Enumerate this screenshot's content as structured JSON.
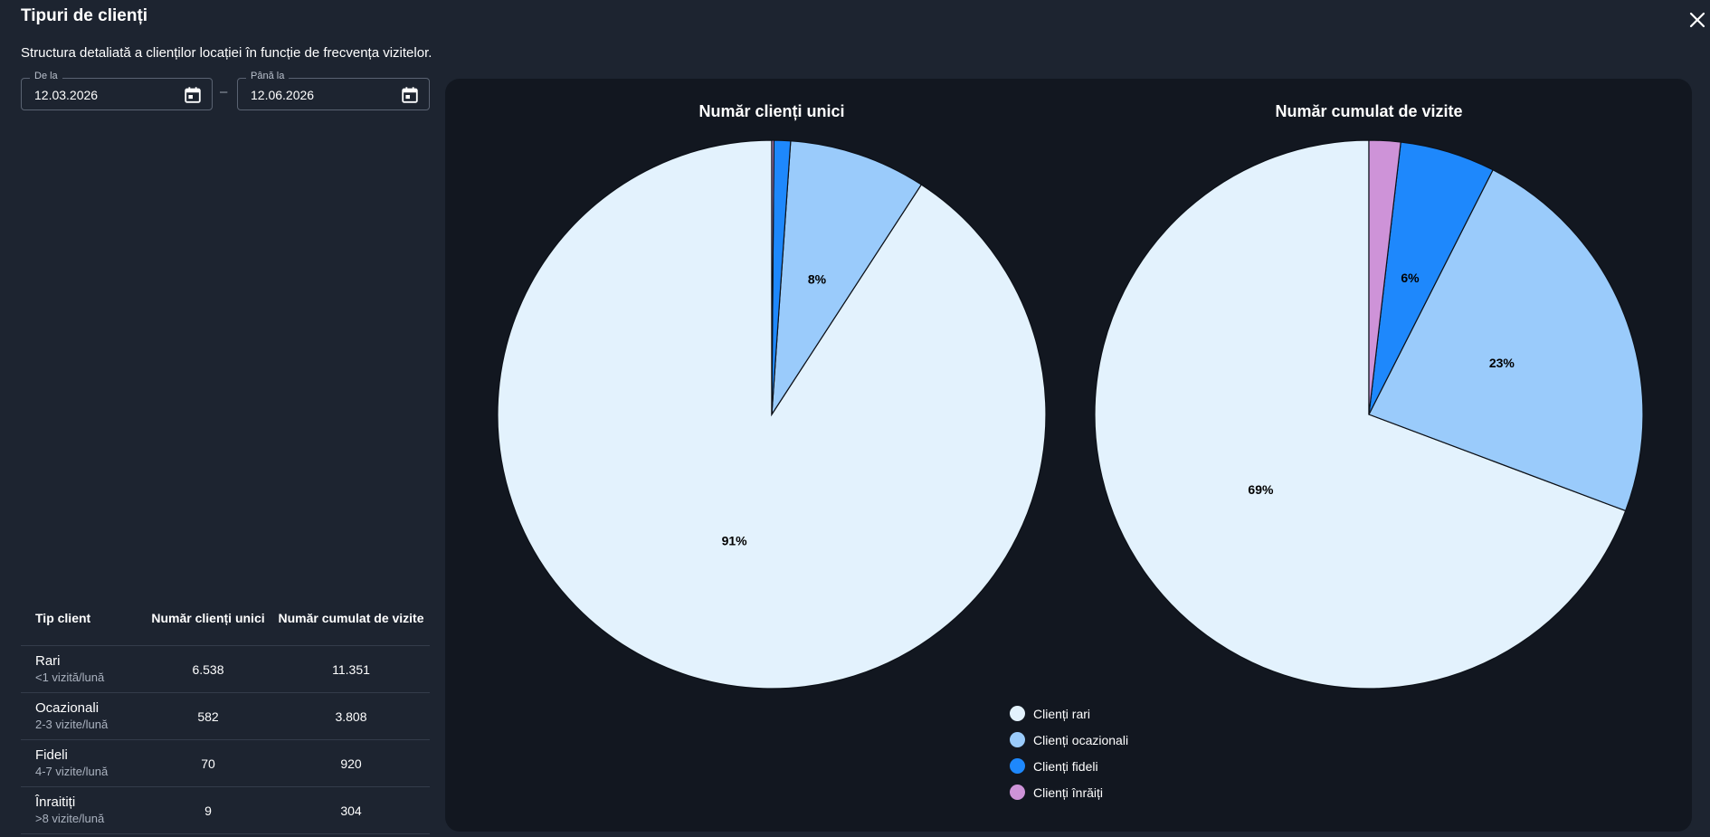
{
  "dialog": {
    "title": "Tipuri de clienți",
    "subtitle": "Structura detaliată a clienților locației în funcție de frecvența vizitelor."
  },
  "date_range": {
    "from_label": "De la",
    "from_value": "12.03.2026",
    "separator": "–",
    "to_label": "Până la",
    "to_value": "12.06.2026"
  },
  "table": {
    "headers": [
      "Tip client",
      "Număr clienți unici",
      "Număr cumulat de vizite"
    ],
    "rows": [
      {
        "name": "Rari",
        "sub": "<1 vizită/lună",
        "unique": "6.538",
        "visits": "11.351"
      },
      {
        "name": "Ocazionali",
        "sub": "2-3 vizite/lună",
        "unique": "582",
        "visits": "3.808"
      },
      {
        "name": "Fideli",
        "sub": "4-7 vizite/lună",
        "unique": "70",
        "visits": "920"
      },
      {
        "name": "Înraitiți",
        "sub": ">8 vizite/lună",
        "unique": "9",
        "visits": "304"
      }
    ]
  },
  "legend": [
    {
      "label": "Clienți rari",
      "color": "#e3f2fd"
    },
    {
      "label": "Clienți ocazionali",
      "color": "#9acbfb"
    },
    {
      "label": "Clienți fideli",
      "color": "#1e88fc"
    },
    {
      "label": "Clienți înrăiți",
      "color": "#ce93d8"
    }
  ],
  "chart_data": [
    {
      "type": "pie",
      "title": "Număr clienți unici",
      "categories": [
        "Clienți rari",
        "Clienți ocazionali",
        "Clienți fideli",
        "Clienți înrăiți"
      ],
      "values": [
        6538,
        582,
        70,
        9
      ],
      "labels": [
        "91%",
        "8%",
        "",
        ""
      ],
      "colors": [
        "#e3f2fd",
        "#9acbfb",
        "#1e88fc",
        "#ce93d8"
      ]
    },
    {
      "type": "pie",
      "title": "Număr cumulat de vizite",
      "categories": [
        "Clienți rari",
        "Clienți ocazionali",
        "Clienți fideli",
        "Clienți înrăiți"
      ],
      "values": [
        11351,
        3808,
        920,
        304
      ],
      "labels": [
        "69%",
        "23%",
        "6%",
        ""
      ],
      "colors": [
        "#e3f2fd",
        "#9acbfb",
        "#1e88fc",
        "#ce93d8"
      ]
    }
  ]
}
